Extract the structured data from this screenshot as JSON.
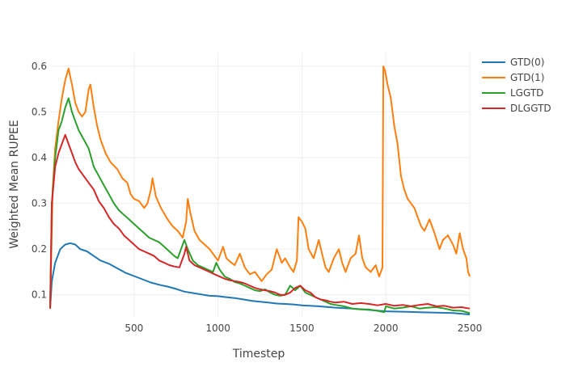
{
  "chart_data": {
    "type": "line",
    "title": "",
    "xlabel": "Timestep",
    "ylabel": "Weighted Mean RUPEE",
    "xlim": [
      0,
      2500
    ],
    "ylim": [
      0.05,
      0.63
    ],
    "x_ticks": [
      500,
      1000,
      1500,
      2000,
      2500
    ],
    "y_ticks": [
      0.1,
      0.2,
      0.3,
      0.4,
      0.5,
      0.6
    ],
    "grid": true,
    "legend_position": "top-right",
    "series": [
      {
        "name": "GTD(0)",
        "color": "#1f77b4",
        "points": [
          [
            0,
            0.07
          ],
          [
            10,
            0.13
          ],
          [
            30,
            0.17
          ],
          [
            60,
            0.2
          ],
          [
            90,
            0.21
          ],
          [
            120,
            0.213
          ],
          [
            150,
            0.21
          ],
          [
            180,
            0.2
          ],
          [
            220,
            0.195
          ],
          [
            260,
            0.185
          ],
          [
            300,
            0.175
          ],
          [
            350,
            0.168
          ],
          [
            400,
            0.158
          ],
          [
            450,
            0.148
          ],
          [
            500,
            0.141
          ],
          [
            550,
            0.134
          ],
          [
            600,
            0.127
          ],
          [
            650,
            0.122
          ],
          [
            700,
            0.118
          ],
          [
            750,
            0.113
          ],
          [
            800,
            0.107
          ],
          [
            850,
            0.104
          ],
          [
            900,
            0.101
          ],
          [
            950,
            0.098
          ],
          [
            1000,
            0.097
          ],
          [
            1050,
            0.095
          ],
          [
            1100,
            0.093
          ],
          [
            1150,
            0.09
          ],
          [
            1200,
            0.087
          ],
          [
            1250,
            0.085
          ],
          [
            1300,
            0.083
          ],
          [
            1350,
            0.081
          ],
          [
            1400,
            0.08
          ],
          [
            1450,
            0.079
          ],
          [
            1500,
            0.077
          ],
          [
            1600,
            0.075
          ],
          [
            1700,
            0.072
          ],
          [
            1800,
            0.07
          ],
          [
            1900,
            0.067
          ],
          [
            2000,
            0.064
          ],
          [
            2100,
            0.063
          ],
          [
            2200,
            0.062
          ],
          [
            2300,
            0.061
          ],
          [
            2400,
            0.06
          ],
          [
            2500,
            0.057
          ]
        ]
      },
      {
        "name": "GTD(1)",
        "color": "#ff7f0e",
        "points": [
          [
            0,
            0.07
          ],
          [
            15,
            0.33
          ],
          [
            30,
            0.42
          ],
          [
            50,
            0.48
          ],
          [
            70,
            0.53
          ],
          [
            90,
            0.57
          ],
          [
            110,
            0.595
          ],
          [
            130,
            0.56
          ],
          [
            150,
            0.52
          ],
          [
            170,
            0.5
          ],
          [
            190,
            0.49
          ],
          [
            210,
            0.5
          ],
          [
            230,
            0.55
          ],
          [
            240,
            0.56
          ],
          [
            260,
            0.51
          ],
          [
            280,
            0.47
          ],
          [
            300,
            0.44
          ],
          [
            330,
            0.41
          ],
          [
            360,
            0.39
          ],
          [
            400,
            0.375
          ],
          [
            430,
            0.355
          ],
          [
            460,
            0.345
          ],
          [
            480,
            0.32
          ],
          [
            500,
            0.31
          ],
          [
            530,
            0.305
          ],
          [
            560,
            0.29
          ],
          [
            580,
            0.3
          ],
          [
            600,
            0.33
          ],
          [
            610,
            0.355
          ],
          [
            630,
            0.315
          ],
          [
            660,
            0.29
          ],
          [
            700,
            0.265
          ],
          [
            730,
            0.25
          ],
          [
            760,
            0.24
          ],
          [
            790,
            0.225
          ],
          [
            810,
            0.26
          ],
          [
            820,
            0.31
          ],
          [
            835,
            0.28
          ],
          [
            860,
            0.24
          ],
          [
            890,
            0.22
          ],
          [
            920,
            0.21
          ],
          [
            950,
            0.2
          ],
          [
            980,
            0.185
          ],
          [
            1000,
            0.175
          ],
          [
            1030,
            0.205
          ],
          [
            1050,
            0.18
          ],
          [
            1080,
            0.17
          ],
          [
            1100,
            0.165
          ],
          [
            1130,
            0.19
          ],
          [
            1160,
            0.16
          ],
          [
            1190,
            0.145
          ],
          [
            1220,
            0.15
          ],
          [
            1260,
            0.13
          ],
          [
            1290,
            0.145
          ],
          [
            1320,
            0.155
          ],
          [
            1350,
            0.2
          ],
          [
            1380,
            0.17
          ],
          [
            1400,
            0.18
          ],
          [
            1430,
            0.16
          ],
          [
            1450,
            0.15
          ],
          [
            1470,
            0.175
          ],
          [
            1480,
            0.27
          ],
          [
            1500,
            0.26
          ],
          [
            1520,
            0.245
          ],
          [
            1540,
            0.2
          ],
          [
            1570,
            0.18
          ],
          [
            1600,
            0.22
          ],
          [
            1620,
            0.19
          ],
          [
            1640,
            0.16
          ],
          [
            1660,
            0.15
          ],
          [
            1690,
            0.18
          ],
          [
            1720,
            0.2
          ],
          [
            1740,
            0.17
          ],
          [
            1760,
            0.15
          ],
          [
            1790,
            0.18
          ],
          [
            1820,
            0.19
          ],
          [
            1840,
            0.23
          ],
          [
            1860,
            0.18
          ],
          [
            1880,
            0.16
          ],
          [
            1910,
            0.15
          ],
          [
            1940,
            0.165
          ],
          [
            1960,
            0.14
          ],
          [
            1970,
            0.15
          ],
          [
            1980,
            0.16
          ],
          [
            1985,
            0.6
          ],
          [
            1995,
            0.59
          ],
          [
            2010,
            0.56
          ],
          [
            2030,
            0.53
          ],
          [
            2050,
            0.47
          ],
          [
            2070,
            0.43
          ],
          [
            2090,
            0.36
          ],
          [
            2110,
            0.33
          ],
          [
            2130,
            0.31
          ],
          [
            2150,
            0.3
          ],
          [
            2170,
            0.29
          ],
          [
            2190,
            0.27
          ],
          [
            2210,
            0.25
          ],
          [
            2230,
            0.24
          ],
          [
            2260,
            0.265
          ],
          [
            2290,
            0.235
          ],
          [
            2320,
            0.2
          ],
          [
            2340,
            0.22
          ],
          [
            2370,
            0.23
          ],
          [
            2400,
            0.21
          ],
          [
            2420,
            0.19
          ],
          [
            2440,
            0.235
          ],
          [
            2460,
            0.2
          ],
          [
            2480,
            0.18
          ],
          [
            2490,
            0.15
          ],
          [
            2500,
            0.14
          ]
        ]
      },
      {
        "name": "LGGTD",
        "color": "#2ca02c",
        "points": [
          [
            0,
            0.07
          ],
          [
            10,
            0.3
          ],
          [
            30,
            0.4
          ],
          [
            50,
            0.46
          ],
          [
            70,
            0.48
          ],
          [
            90,
            0.51
          ],
          [
            110,
            0.53
          ],
          [
            130,
            0.5
          ],
          [
            150,
            0.48
          ],
          [
            170,
            0.46
          ],
          [
            200,
            0.44
          ],
          [
            230,
            0.42
          ],
          [
            260,
            0.38
          ],
          [
            290,
            0.36
          ],
          [
            320,
            0.34
          ],
          [
            350,
            0.32
          ],
          [
            380,
            0.3
          ],
          [
            410,
            0.285
          ],
          [
            440,
            0.275
          ],
          [
            470,
            0.265
          ],
          [
            500,
            0.255
          ],
          [
            530,
            0.245
          ],
          [
            560,
            0.235
          ],
          [
            590,
            0.225
          ],
          [
            620,
            0.22
          ],
          [
            650,
            0.215
          ],
          [
            680,
            0.205
          ],
          [
            710,
            0.195
          ],
          [
            740,
            0.185
          ],
          [
            760,
            0.18
          ],
          [
            780,
            0.2
          ],
          [
            800,
            0.22
          ],
          [
            820,
            0.2
          ],
          [
            850,
            0.175
          ],
          [
            880,
            0.165
          ],
          [
            910,
            0.16
          ],
          [
            940,
            0.155
          ],
          [
            970,
            0.15
          ],
          [
            990,
            0.17
          ],
          [
            1010,
            0.155
          ],
          [
            1040,
            0.14
          ],
          [
            1070,
            0.135
          ],
          [
            1100,
            0.128
          ],
          [
            1130,
            0.125
          ],
          [
            1160,
            0.12
          ],
          [
            1190,
            0.115
          ],
          [
            1220,
            0.11
          ],
          [
            1250,
            0.108
          ],
          [
            1280,
            0.112
          ],
          [
            1310,
            0.105
          ],
          [
            1340,
            0.1
          ],
          [
            1370,
            0.098
          ],
          [
            1400,
            0.1
          ],
          [
            1430,
            0.12
          ],
          [
            1460,
            0.11
          ],
          [
            1490,
            0.12
          ],
          [
            1520,
            0.105
          ],
          [
            1550,
            0.1
          ],
          [
            1580,
            0.095
          ],
          [
            1610,
            0.09
          ],
          [
            1640,
            0.085
          ],
          [
            1670,
            0.08
          ],
          [
            1700,
            0.078
          ],
          [
            1750,
            0.075
          ],
          [
            1800,
            0.07
          ],
          [
            1850,
            0.068
          ],
          [
            1900,
            0.068
          ],
          [
            1950,
            0.065
          ],
          [
            1990,
            0.062
          ],
          [
            2000,
            0.075
          ],
          [
            2050,
            0.07
          ],
          [
            2100,
            0.072
          ],
          [
            2150,
            0.075
          ],
          [
            2200,
            0.07
          ],
          [
            2250,
            0.072
          ],
          [
            2300,
            0.073
          ],
          [
            2350,
            0.07
          ],
          [
            2400,
            0.066
          ],
          [
            2450,
            0.065
          ],
          [
            2500,
            0.06
          ]
        ]
      },
      {
        "name": "DLGGTD",
        "color": "#d62728",
        "points": [
          [
            0,
            0.07
          ],
          [
            10,
            0.3
          ],
          [
            30,
            0.38
          ],
          [
            50,
            0.41
          ],
          [
            70,
            0.43
          ],
          [
            90,
            0.45
          ],
          [
            110,
            0.43
          ],
          [
            130,
            0.41
          ],
          [
            150,
            0.39
          ],
          [
            170,
            0.375
          ],
          [
            200,
            0.36
          ],
          [
            230,
            0.345
          ],
          [
            260,
            0.33
          ],
          [
            290,
            0.305
          ],
          [
            320,
            0.29
          ],
          [
            350,
            0.27
          ],
          [
            380,
            0.255
          ],
          [
            410,
            0.245
          ],
          [
            440,
            0.23
          ],
          [
            470,
            0.22
          ],
          [
            500,
            0.21
          ],
          [
            530,
            0.2
          ],
          [
            560,
            0.195
          ],
          [
            590,
            0.19
          ],
          [
            620,
            0.185
          ],
          [
            650,
            0.175
          ],
          [
            680,
            0.17
          ],
          [
            710,
            0.165
          ],
          [
            740,
            0.162
          ],
          [
            770,
            0.16
          ],
          [
            800,
            0.19
          ],
          [
            810,
            0.205
          ],
          [
            830,
            0.175
          ],
          [
            860,
            0.165
          ],
          [
            890,
            0.16
          ],
          [
            920,
            0.155
          ],
          [
            950,
            0.15
          ],
          [
            980,
            0.145
          ],
          [
            1010,
            0.14
          ],
          [
            1040,
            0.135
          ],
          [
            1070,
            0.132
          ],
          [
            1100,
            0.13
          ],
          [
            1130,
            0.128
          ],
          [
            1160,
            0.125
          ],
          [
            1190,
            0.12
          ],
          [
            1220,
            0.115
          ],
          [
            1250,
            0.112
          ],
          [
            1280,
            0.11
          ],
          [
            1310,
            0.108
          ],
          [
            1340,
            0.105
          ],
          [
            1370,
            0.1
          ],
          [
            1400,
            0.1
          ],
          [
            1430,
            0.105
          ],
          [
            1460,
            0.115
          ],
          [
            1490,
            0.12
          ],
          [
            1520,
            0.11
          ],
          [
            1550,
            0.105
          ],
          [
            1580,
            0.095
          ],
          [
            1610,
            0.09
          ],
          [
            1640,
            0.088
          ],
          [
            1670,
            0.085
          ],
          [
            1700,
            0.083
          ],
          [
            1750,
            0.085
          ],
          [
            1800,
            0.08
          ],
          [
            1850,
            0.082
          ],
          [
            1900,
            0.08
          ],
          [
            1950,
            0.077
          ],
          [
            2000,
            0.08
          ],
          [
            2050,
            0.076
          ],
          [
            2100,
            0.078
          ],
          [
            2150,
            0.075
          ],
          [
            2200,
            0.078
          ],
          [
            2250,
            0.08
          ],
          [
            2300,
            0.075
          ],
          [
            2350,
            0.076
          ],
          [
            2400,
            0.072
          ],
          [
            2450,
            0.073
          ],
          [
            2500,
            0.07
          ]
        ]
      }
    ]
  }
}
